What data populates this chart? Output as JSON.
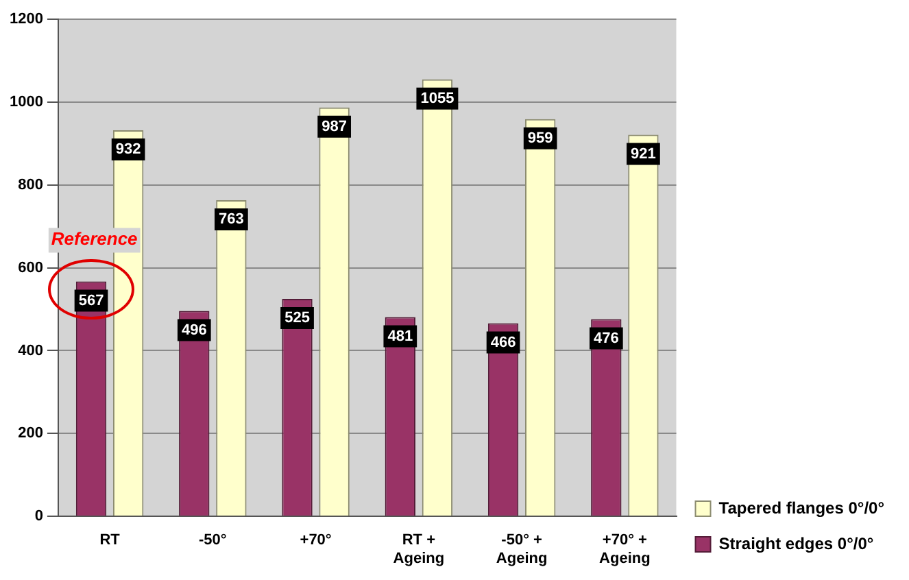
{
  "chart_data": {
    "type": "bar",
    "categories": [
      "RT",
      "-50°",
      "+70°",
      "RT +\nAgeing",
      "-50° +\nAgeing",
      "+70° +\nAgeing"
    ],
    "series": [
      {
        "name": "Straight edges 0°/0°",
        "color": "#993366",
        "values": [
          567,
          496,
          525,
          481,
          466,
          476
        ]
      },
      {
        "name": "Tapered flanges 0°/0°",
        "color": "#ffffcc",
        "values": [
          932,
          763,
          987,
          1055,
          959,
          921
        ]
      }
    ],
    "ylim": [
      0,
      1200
    ],
    "yticks": [
      0,
      200,
      400,
      600,
      800,
      1000,
      1200
    ],
    "grid": "y",
    "legend": "bottom right",
    "data_labels": true,
    "annotations": [
      {
        "text": "Reference",
        "x": "RT",
        "y": 567
      }
    ]
  }
}
